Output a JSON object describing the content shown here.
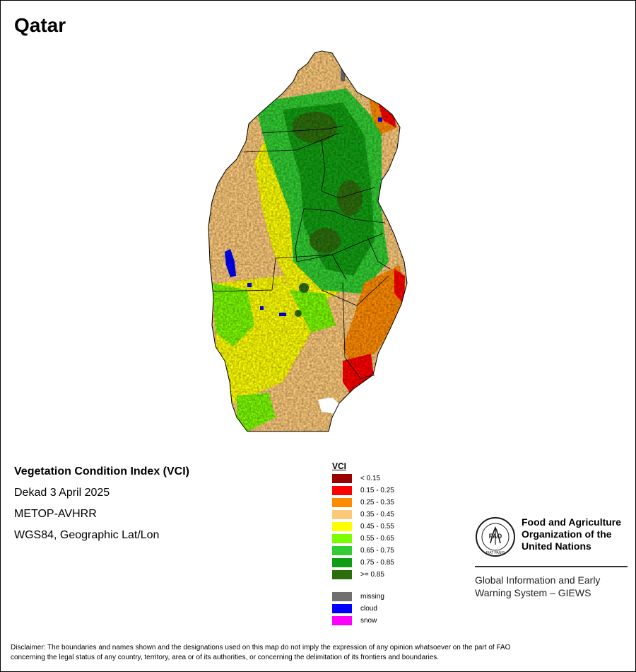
{
  "title": "Qatar",
  "info": {
    "index_name": "Vegetation Condition Index (VCI)",
    "period": "Dekad 3 April 2025",
    "sensor": "METOP-AVHRR",
    "projection": "WGS84, Geographic Lat/Lon"
  },
  "legend": {
    "title": "VCI",
    "classes": [
      {
        "label": "< 0.15",
        "color": "#9b0000"
      },
      {
        "label": "0.15 - 0.25",
        "color": "#ff0000"
      },
      {
        "label": "0.25 - 0.35",
        "color": "#ff8c00"
      },
      {
        "label": "0.35 - 0.45",
        "color": "#fcc97a"
      },
      {
        "label": "0.45 - 0.55",
        "color": "#ffff00"
      },
      {
        "label": "0.55 - 0.65",
        "color": "#7cfc00"
      },
      {
        "label": "0.65 - 0.75",
        "color": "#32cd32"
      },
      {
        "label": "0.75 - 0.85",
        "color": "#129e12"
      },
      {
        "label": ">= 0.85",
        "color": "#2d6e0c"
      }
    ],
    "other": [
      {
        "label": "missing",
        "color": "#707070"
      },
      {
        "label": "cloud",
        "color": "#0000ff"
      },
      {
        "label": "snow",
        "color": "#ff00ff"
      }
    ]
  },
  "org": {
    "name_line1": "Food and Agriculture",
    "name_line2": "Organization of the",
    "name_line3": "United Nations",
    "giews_line1": "Global Information and Early",
    "giews_line2": "Warning System – GIEWS",
    "logo_text": "FAO",
    "logo_motto": "FIAT PANIS"
  },
  "disclaimer": {
    "line1": "Disclaimer: The boundaries and names shown and the designations used on this map do not imply the expression of any opinion whatsoever on the part of FAO",
    "line2": "concerning the legal status of any country, territory, area or of its authorities, or concerning the delimitation of its frontiers and boundaries."
  }
}
